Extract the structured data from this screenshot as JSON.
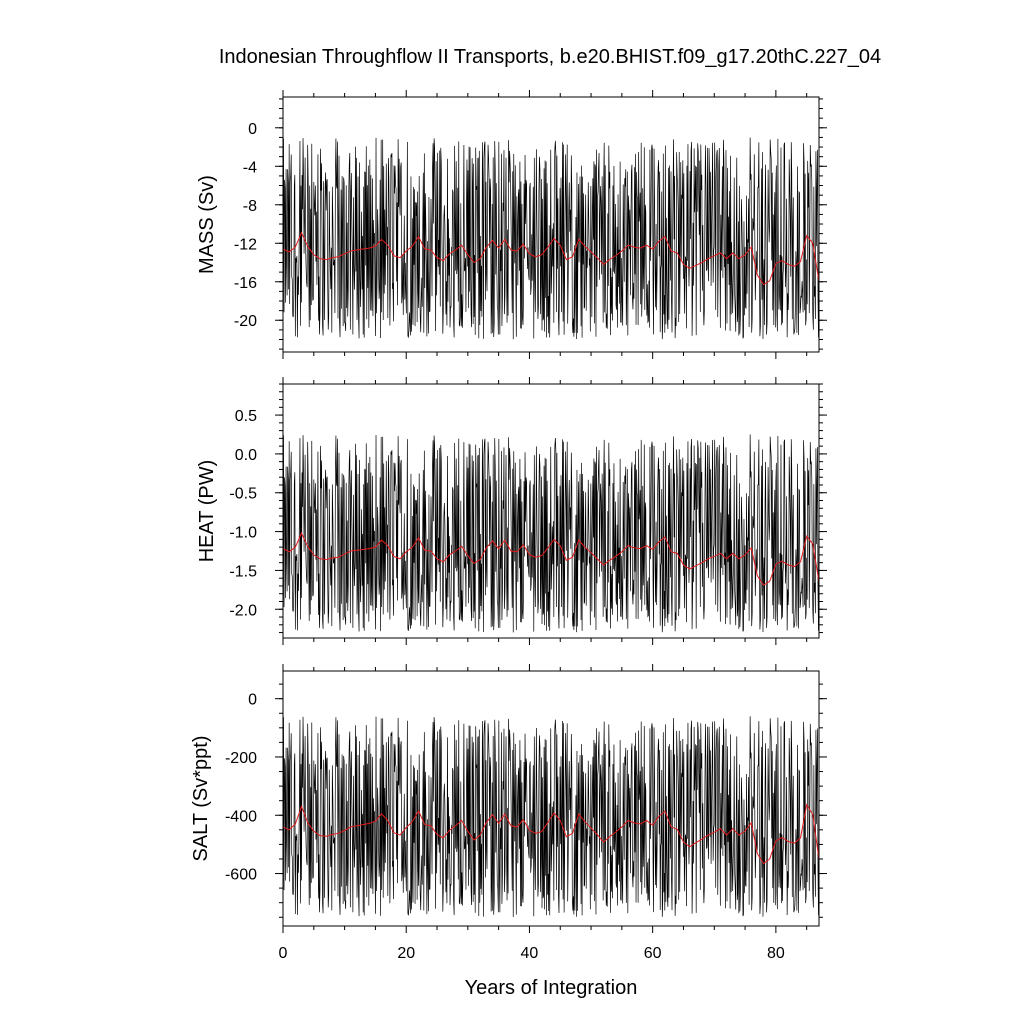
{
  "title": "Indonesian Throughflow II Transports, b.e20.BHIST.f09_g17.20thC.227_04",
  "xlabel": "Years of Integration",
  "colors": {
    "raw": "#000000",
    "smoothed": "#e41a1c",
    "frame": "#000000"
  },
  "chart_data": [
    {
      "type": "line",
      "title": "",
      "ylabel": "MASS (Sv)",
      "xlabel": "Years of Integration",
      "xlim": [
        0,
        87
      ],
      "ylim": [
        -23.3,
        3.2
      ],
      "xticks": [
        "0",
        "20",
        "40",
        "60",
        "80"
      ],
      "yticks": [
        "0",
        "-4",
        "-8",
        "-12",
        "-16",
        "-20"
      ],
      "ytick_values": [
        0,
        -4,
        -8,
        -12,
        -16,
        -20
      ],
      "ytick_minor_step": 1,
      "grid": false,
      "series": [
        {
          "kind": "monthly",
          "mean": -13.8,
          "amp_up": 12.8,
          "amp_down": 8.2,
          "values": []
        },
        {
          "kind": "smoothed",
          "values": [
            -12.6,
            -12.9,
            -12.4,
            -10.9,
            -12.3,
            -13.2,
            -13.6,
            -13.7,
            -13.5,
            -13.4,
            -13.1,
            -12.8,
            -12.7,
            -12.6,
            -12.5,
            -12.3,
            -11.6,
            -12.2,
            -13.3,
            -13.5,
            -12.8,
            -12.3,
            -11.3,
            -12.6,
            -12.7,
            -13.5,
            -13.8,
            -13.1,
            -12.7,
            -12.2,
            -13.2,
            -14.0,
            -13.6,
            -12.4,
            -11.7,
            -12.5,
            -11.6,
            -12.7,
            -12.8,
            -12.1,
            -13.1,
            -13.4,
            -13.2,
            -12.4,
            -11.5,
            -12.2,
            -13.7,
            -13.4,
            -11.6,
            -12.3,
            -12.9,
            -13.5,
            -14.2,
            -13.7,
            -13.3,
            -12.8,
            -12.2,
            -12.4,
            -12.5,
            -12.2,
            -12.6,
            -11.8,
            -11.3,
            -12.8,
            -13.0,
            -14.2,
            -14.6,
            -14.3,
            -14.0,
            -13.6,
            -13.3,
            -13.0,
            -13.6,
            -13.0,
            -13.6,
            -13.2,
            -12.4,
            -15.3,
            -16.3,
            -15.9,
            -14.1,
            -13.8,
            -14.2,
            -14.4,
            -13.9,
            -11.2,
            -12.0,
            -16.0
          ]
        }
      ]
    },
    {
      "type": "line",
      "title": "",
      "ylabel": "HEAT (PW)",
      "xlabel": "Years of Integration",
      "xlim": [
        0,
        87
      ],
      "ylim": [
        -2.37,
        0.9
      ],
      "xticks": [
        "0",
        "20",
        "40",
        "60",
        "80"
      ],
      "yticks": [
        "0.5",
        "0.0",
        "-0.5",
        "-1.0",
        "-1.5",
        "-2.0"
      ],
      "ytick_values": [
        0.5,
        0.0,
        -0.5,
        -1.0,
        -1.5,
        -2.0
      ],
      "ytick_minor_step": 0.1,
      "grid": false,
      "series": [
        {
          "kind": "monthly",
          "mean": -1.35,
          "amp_up": 1.6,
          "amp_down": 0.95,
          "values": []
        },
        {
          "kind": "smoothed",
          "values": [
            -1.22,
            -1.26,
            -1.2,
            -1.02,
            -1.19,
            -1.3,
            -1.35,
            -1.36,
            -1.34,
            -1.33,
            -1.29,
            -1.25,
            -1.24,
            -1.23,
            -1.22,
            -1.2,
            -1.11,
            -1.18,
            -1.32,
            -1.35,
            -1.26,
            -1.2,
            -1.08,
            -1.24,
            -1.25,
            -1.35,
            -1.39,
            -1.3,
            -1.25,
            -1.19,
            -1.31,
            -1.41,
            -1.36,
            -1.21,
            -1.12,
            -1.22,
            -1.11,
            -1.25,
            -1.26,
            -1.17,
            -1.3,
            -1.33,
            -1.31,
            -1.21,
            -1.1,
            -1.18,
            -1.37,
            -1.33,
            -1.11,
            -1.2,
            -1.27,
            -1.35,
            -1.43,
            -1.37,
            -1.32,
            -1.26,
            -1.18,
            -1.21,
            -1.22,
            -1.18,
            -1.23,
            -1.13,
            -1.07,
            -1.26,
            -1.28,
            -1.43,
            -1.48,
            -1.44,
            -1.4,
            -1.35,
            -1.32,
            -1.28,
            -1.35,
            -1.28,
            -1.35,
            -1.3,
            -1.21,
            -1.57,
            -1.69,
            -1.64,
            -1.42,
            -1.38,
            -1.43,
            -1.45,
            -1.39,
            -1.06,
            -1.16,
            -1.65
          ]
        }
      ]
    },
    {
      "type": "line",
      "title": "",
      "ylabel": "SALT (Sv*ppt)",
      "xlabel": "Years of Integration",
      "xlim": [
        0,
        87
      ],
      "ylim": [
        -780,
        95
      ],
      "xticks": [
        "0",
        "20",
        "40",
        "60",
        "80"
      ],
      "yticks": [
        "0",
        "-200",
        "-400",
        "-600"
      ],
      "ytick_values": [
        0,
        -200,
        -400,
        -600
      ],
      "ytick_minor_step": 50,
      "grid": false,
      "series": [
        {
          "kind": "monthly",
          "mean": -480,
          "amp_up": 420,
          "amp_down": 270,
          "values": []
        },
        {
          "kind": "smoothed",
          "values": [
            -440,
            -450,
            -430,
            -370,
            -425,
            -455,
            -470,
            -472,
            -466,
            -462,
            -452,
            -440,
            -436,
            -432,
            -428,
            -420,
            -395,
            -418,
            -460,
            -468,
            -442,
            -422,
            -385,
            -432,
            -436,
            -466,
            -478,
            -452,
            -436,
            -418,
            -455,
            -485,
            -468,
            -425,
            -398,
            -428,
            -396,
            -436,
            -440,
            -415,
            -452,
            -462,
            -456,
            -424,
            -392,
            -418,
            -474,
            -462,
            -396,
            -422,
            -444,
            -466,
            -492,
            -474,
            -458,
            -440,
            -418,
            -426,
            -430,
            -418,
            -434,
            -404,
            -386,
            -440,
            -448,
            -492,
            -508,
            -494,
            -482,
            -468,
            -458,
            -446,
            -468,
            -446,
            -468,
            -454,
            -426,
            -532,
            -566,
            -550,
            -488,
            -476,
            -490,
            -496,
            -478,
            -364,
            -398,
            -552
          ]
        }
      ]
    }
  ]
}
